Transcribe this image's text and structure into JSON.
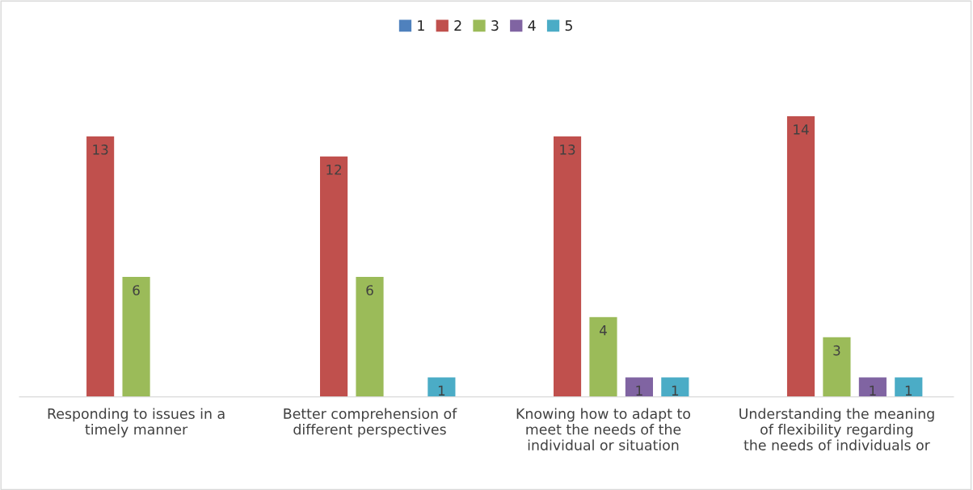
{
  "chart_data": {
    "type": "bar",
    "categories": [
      "Responding to issues in a timely manner",
      "Better comprehension of different perspectives",
      "Knowing how to adapt to meet the needs of the individual or situation",
      "Understanding the meaning of flexibility regarding the needs of individuals or"
    ],
    "series": [
      {
        "name": "1",
        "color": "#4f81bd",
        "values": [
          null,
          null,
          null,
          null
        ]
      },
      {
        "name": "2",
        "color": "#c0504d",
        "values": [
          13,
          12,
          13,
          14
        ]
      },
      {
        "name": "3",
        "color": "#9bbb59",
        "values": [
          6,
          6,
          4,
          3
        ]
      },
      {
        "name": "4",
        "color": "#8064a2",
        "values": [
          null,
          null,
          1,
          1
        ]
      },
      {
        "name": "5",
        "color": "#4bacc6",
        "values": [
          null,
          1,
          1,
          1
        ]
      }
    ],
    "data_labels": true,
    "legend": "top",
    "grid": false
  }
}
